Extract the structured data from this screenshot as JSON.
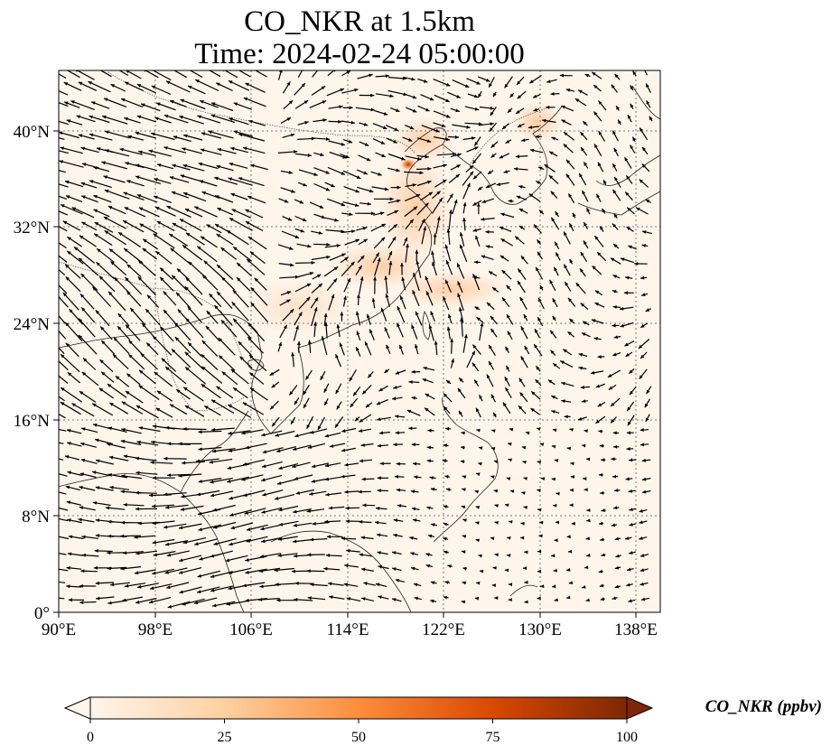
{
  "title_line1": "CO_NKR at 1.5km",
  "title_line2": "Time: 2024-02-24 05:00:00",
  "lon_ticks": [
    "90°E",
    "98°E",
    "106°E",
    "114°E",
    "122°E",
    "130°E",
    "138°E"
  ],
  "lat_ticks": [
    "40°N",
    "32°N",
    "24°N",
    "16°N",
    "8°N",
    "0°"
  ],
  "colorbar": {
    "label": "CO_NKR (ppbv)",
    "ticks": [
      "0",
      "25",
      "50",
      "75",
      "100"
    ],
    "colormap": [
      "#fff5eb",
      "#fdd0a2",
      "#fd8d3c",
      "#d94801",
      "#7f2704"
    ],
    "extend": "both"
  },
  "map": {
    "projection": "PlateCarree",
    "lon_range": [
      90,
      140
    ],
    "lat_range": [
      0,
      45
    ],
    "background_color": "#fff5eb",
    "gridlines": "dotted",
    "features": [
      "coastlines",
      "borders",
      "wind vectors"
    ]
  }
}
